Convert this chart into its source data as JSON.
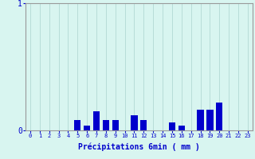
{
  "categories": [
    0,
    1,
    2,
    3,
    4,
    5,
    6,
    7,
    8,
    9,
    10,
    11,
    12,
    13,
    14,
    15,
    16,
    17,
    18,
    19,
    20,
    21,
    22,
    23
  ],
  "values": [
    0,
    0,
    0,
    0,
    0,
    0.08,
    0.04,
    0.15,
    0.08,
    0.08,
    0,
    0.12,
    0.08,
    0,
    0,
    0.06,
    0.04,
    0,
    0.16,
    0.16,
    0.22,
    0,
    0,
    0
  ],
  "bar_color": "#0000cc",
  "bg_color": "#d8f5f0",
  "grid_color": "#b8ddd8",
  "text_color": "#0000cc",
  "xlabel": "Précipitations 6min ( mm )",
  "ylim": [
    0,
    1.0
  ],
  "ytick_labels": [
    "0",
    "1"
  ],
  "ytick_vals": [
    0,
    1
  ],
  "xlim": [
    -0.5,
    23.5
  ]
}
